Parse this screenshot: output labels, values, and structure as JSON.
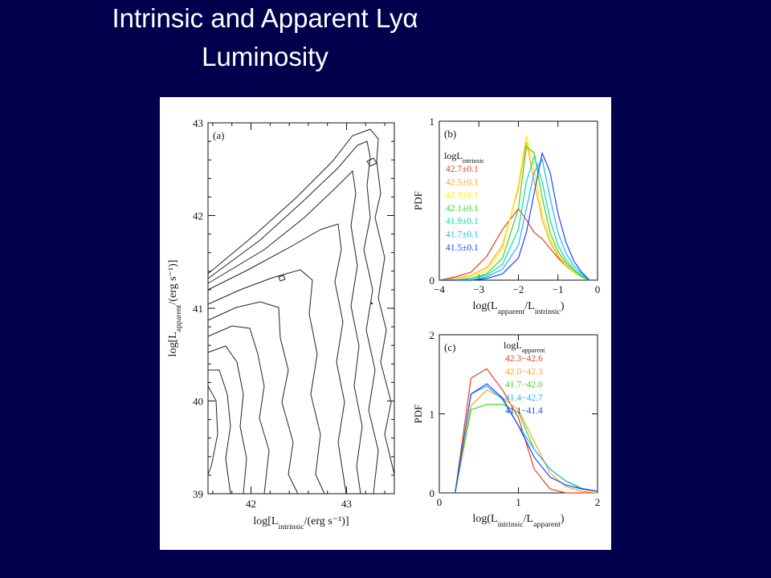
{
  "slide": {
    "title_line1": "Intrinsic and Apparent Lyα",
    "title_line2": "Luminosity",
    "background": "#00004c",
    "title_color": "#ffffff"
  },
  "chart_data": [
    {
      "type": "contour",
      "panel_label": "(a)",
      "xlabel": "log[L_intrinsic/(erg s⁻¹)]",
      "ylabel": "log[L_apparent/(erg s⁻¹)]",
      "xlim": [
        41.55,
        43.5
      ],
      "ylim": [
        39,
        43
      ],
      "x_ticks": [
        "42",
        "43"
      ],
      "y_ticks": [
        "39",
        "40",
        "41",
        "42",
        "43"
      ],
      "line_color": "#222222"
    },
    {
      "type": "line",
      "panel_label": "(b)",
      "xlabel": "log(L_apparent/L_intrinsic)",
      "ylabel": "PDF",
      "xlim": [
        -4,
        0
      ],
      "ylim": [
        0,
        1
      ],
      "x_ticks": [
        "−4",
        "−3",
        "−2",
        "−1",
        "0"
      ],
      "y_ticks": [
        "0",
        "1"
      ],
      "legend_title": "logL_intrinsic",
      "x": [
        -4.0,
        -3.6,
        -3.2,
        -2.8,
        -2.4,
        -2.0,
        -1.8,
        -1.6,
        -1.4,
        -1.2,
        -1.0,
        -0.8,
        -0.6,
        -0.4,
        -0.2
      ],
      "series": [
        {
          "name": "42.7±0.1",
          "color": "#e8401c",
          "values": [
            0.0,
            0.02,
            0.05,
            0.15,
            0.32,
            0.45,
            0.38,
            0.3,
            0.26,
            0.2,
            0.14,
            0.09,
            0.05,
            0.02,
            0.0
          ]
        },
        {
          "name": "42.5±0.1",
          "color": "#ffa020",
          "values": [
            0.0,
            0.01,
            0.03,
            0.08,
            0.22,
            0.58,
            0.87,
            0.62,
            0.38,
            0.24,
            0.15,
            0.09,
            0.05,
            0.02,
            0.0
          ]
        },
        {
          "name": "42.3±0.1",
          "color": "#ffee00",
          "values": [
            0.0,
            0.0,
            0.02,
            0.06,
            0.2,
            0.6,
            0.91,
            0.7,
            0.42,
            0.26,
            0.16,
            0.1,
            0.05,
            0.02,
            0.0
          ]
        },
        {
          "name": "42.1±0.1",
          "color": "#40d020",
          "values": [
            0.0,
            0.0,
            0.01,
            0.04,
            0.14,
            0.45,
            0.84,
            0.8,
            0.52,
            0.3,
            0.18,
            0.11,
            0.06,
            0.02,
            0.0
          ]
        },
        {
          "name": "41.9±0.1",
          "color": "#00e0a0",
          "values": [
            0.0,
            0.0,
            0.01,
            0.03,
            0.1,
            0.32,
            0.62,
            0.78,
            0.62,
            0.38,
            0.22,
            0.13,
            0.07,
            0.03,
            0.0
          ]
        },
        {
          "name": "41.7±0.1",
          "color": "#18b8ff",
          "values": [
            0.0,
            0.0,
            0.0,
            0.02,
            0.07,
            0.22,
            0.45,
            0.68,
            0.76,
            0.52,
            0.3,
            0.17,
            0.09,
            0.04,
            0.0
          ]
        },
        {
          "name": "41.5±0.1",
          "color": "#2040ff",
          "values": [
            0.0,
            0.0,
            0.0,
            0.01,
            0.04,
            0.14,
            0.3,
            0.55,
            0.8,
            0.68,
            0.42,
            0.24,
            0.12,
            0.05,
            0.0
          ]
        }
      ]
    },
    {
      "type": "line",
      "panel_label": "(c)",
      "xlabel": "log(L_intrinsic/L_apparent)",
      "ylabel": "PDF",
      "xlim": [
        0,
        2
      ],
      "ylim": [
        0,
        2
      ],
      "x_ticks": [
        "0",
        "1",
        "2"
      ],
      "y_ticks": [
        "0",
        "1",
        "2"
      ],
      "legend_title": "logL_apparent",
      "x": [
        0.2,
        0.4,
        0.6,
        0.8,
        1.0,
        1.2,
        1.4,
        1.6,
        1.8,
        2.0
      ],
      "series": [
        {
          "name": "42.3−42.6",
          "color": "#e8401c",
          "values": [
            0.0,
            1.45,
            1.57,
            1.3,
            0.95,
            0.3,
            0.05,
            0.0,
            0.0,
            0.0
          ]
        },
        {
          "name": "42.0−42.3",
          "color": "#ffa020",
          "values": [
            0.0,
            1.1,
            1.3,
            1.2,
            1.05,
            0.65,
            0.25,
            0.08,
            0.02,
            0.0
          ]
        },
        {
          "name": "41.7−42.0",
          "color": "#40d020",
          "values": [
            0.0,
            1.05,
            1.12,
            1.12,
            1.02,
            0.55,
            0.3,
            0.15,
            0.05,
            0.02
          ]
        },
        {
          "name": "41.4−42.7",
          "color": "#18b8ff",
          "values": [
            0.0,
            1.25,
            1.35,
            1.18,
            0.85,
            0.55,
            0.3,
            0.15,
            0.06,
            0.02
          ]
        },
        {
          "name": "41.1−41.4",
          "color": "#2040ff",
          "values": [
            0.0,
            1.25,
            1.38,
            1.2,
            0.85,
            0.45,
            0.2,
            0.1,
            0.05,
            0.02
          ]
        }
      ]
    }
  ]
}
